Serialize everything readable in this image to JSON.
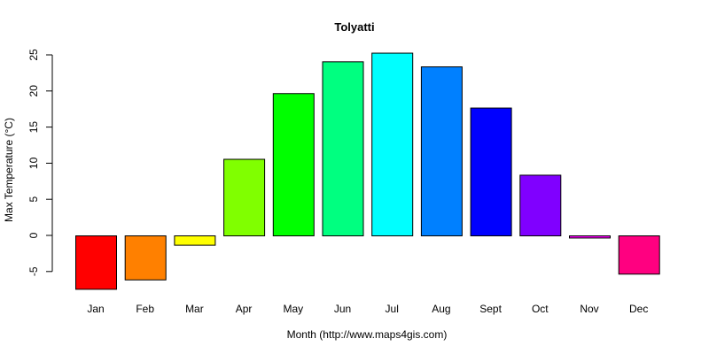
{
  "chart_data": {
    "type": "bar",
    "title": "Tolyatti",
    "xlabel": "Month (http://www.maps4gis.com)",
    "ylabel": "Max Temperature (°C)",
    "categories": [
      "Jan",
      "Feb",
      "Mar",
      "Apr",
      "May",
      "Jun",
      "Jul",
      "Aug",
      "Sept",
      "Oct",
      "Nov",
      "Dec"
    ],
    "values": [
      -7.4,
      -6.1,
      -1.3,
      10.6,
      19.7,
      24.1,
      25.3,
      23.4,
      17.7,
      8.4,
      -0.3,
      -5.3
    ],
    "colors": [
      "#ff0000",
      "#ff8000",
      "#ffff00",
      "#80ff00",
      "#00ff00",
      "#00ff80",
      "#00ffff",
      "#0080ff",
      "#0000ff",
      "#8000ff",
      "#ff00ff",
      "#ff0080"
    ],
    "yticks": [
      -5,
      0,
      5,
      10,
      15,
      20,
      25
    ],
    "ylim": [
      -7.4,
      25.3
    ],
    "grid": false,
    "legend": null
  }
}
